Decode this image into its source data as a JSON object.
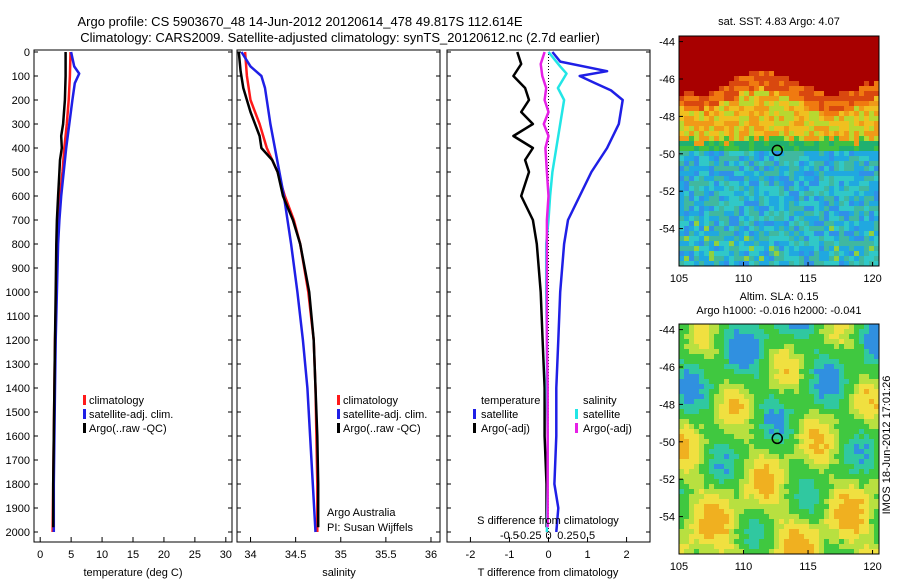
{
  "title": {
    "line1": "Argo profile: CS 5903670_48 14-Jun-2012 20120614_478 49.817S 112.614E",
    "line2": "Climatology: CARS2009. Satellite-adjusted climatology: synTS_20120612.nc (2.7d earlier)"
  },
  "colors": {
    "climatology": "#ff1a1a",
    "satellite": "#1f1fe6",
    "argo": "#000000",
    "sat_salinity": "#22e6e6",
    "argo_salinity": "#e61fe6"
  },
  "depth_ticks": [
    "0",
    "100",
    "200",
    "300",
    "400",
    "500",
    "600",
    "700",
    "800",
    "900",
    "1000",
    "1100",
    "1200",
    "1300",
    "1400",
    "1500",
    "1600",
    "1700",
    "1800",
    "1900",
    "2000"
  ],
  "panel_temp": {
    "xlabel": "temperature (deg C)",
    "xticks": [
      "0",
      "5",
      "10",
      "15",
      "20",
      "25",
      "30"
    ],
    "legend": [
      "climatology",
      "satellite-adj. clim.",
      "Argo(..raw -QC)"
    ]
  },
  "panel_sal": {
    "xlabel": "salinity",
    "xticks": [
      "34",
      "34.5",
      "35",
      "35.5",
      "36"
    ],
    "legend": [
      "climatology",
      "satellite-adj. clim.",
      "Argo(..raw -QC)"
    ],
    "note1": "Argo Australia",
    "note2": "PI: Susan Wijffels"
  },
  "panel_diff": {
    "xlabel": "T difference from climatology",
    "xticks": [
      "-2",
      "-1",
      "0",
      "1",
      "2"
    ],
    "top_label": "S difference from climatology",
    "top_ticks": [
      "-0.5",
      "-0.25",
      "0",
      "0.25",
      "0.5"
    ],
    "legend_t_head": "temperature",
    "legend_s_head": "salinity",
    "legend_t": [
      "satellite",
      "Argo(-adj)"
    ],
    "legend_s": [
      "satellite",
      "Argo(-adj)"
    ]
  },
  "map_sst": {
    "title": "sat. SST: 4.83 Argo: 4.07",
    "yticks": [
      "-44",
      "-46",
      "-48",
      "-50",
      "-52",
      "-54"
    ],
    "xticks": [
      "105",
      "110",
      "115",
      "120"
    ]
  },
  "map_sla": {
    "title1": "Altim. SLA: 0.15",
    "title2": "Argo h1000: -0.016 h2000: -0.041",
    "yticks": [
      "-44",
      "-46",
      "-48",
      "-50",
      "-52",
      "-54"
    ],
    "xticks": [
      "105",
      "110",
      "115",
      "120"
    ]
  },
  "side_label": "IMOS 18-Jun-2012 17:01:26",
  "chart_data": [
    {
      "type": "line",
      "title": "",
      "xlabel": "temperature (deg C)",
      "ylabel": "",
      "xlim": [
        -1,
        31
      ],
      "ylim": [
        2050,
        0
      ],
      "series": [
        {
          "name": "climatology",
          "depth": [
            0,
            100,
            200,
            300,
            400,
            500,
            600,
            700,
            800,
            1000,
            1200,
            1400,
            1600,
            1800,
            2000
          ],
          "values": [
            4.9,
            4.8,
            4.6,
            4.3,
            3.9,
            3.6,
            3.2,
            2.9,
            2.8,
            2.6,
            2.4,
            2.3,
            2.2,
            2.1,
            2.0
          ]
        },
        {
          "name": "satellite-adj. clim.",
          "depth": [
            0,
            60,
            90,
            130,
            200,
            300,
            400,
            500,
            600,
            700,
            800,
            1000,
            1200,
            1400,
            1600,
            1800,
            2000
          ],
          "values": [
            5.0,
            5.5,
            6.3,
            5.6,
            5.2,
            4.7,
            4.2,
            3.8,
            3.4,
            3.1,
            2.9,
            2.7,
            2.5,
            2.4,
            2.3,
            2.2,
            2.2
          ]
        },
        {
          "name": "Argo(..raw -QC)",
          "depth": [
            0,
            100,
            200,
            300,
            350,
            400,
            450,
            500,
            600,
            700,
            800,
            1000,
            1200,
            1400,
            1600,
            1800,
            1980
          ],
          "values": [
            4.1,
            4.1,
            4.0,
            3.7,
            3.4,
            3.5,
            3.2,
            3.1,
            2.9,
            2.7,
            2.6,
            2.5,
            2.4,
            2.3,
            2.2,
            2.1,
            2.1
          ]
        }
      ]
    },
    {
      "type": "line",
      "title": "",
      "xlabel": "salinity",
      "ylabel": "",
      "xlim": [
        33.85,
        36.1
      ],
      "ylim": [
        2050,
        0
      ],
      "series": [
        {
          "name": "climatology",
          "depth": [
            0,
            100,
            200,
            300,
            400,
            500,
            600,
            700,
            800,
            1000,
            1200,
            1400,
            1600,
            1800,
            2000
          ],
          "values": [
            33.94,
            33.96,
            34.0,
            34.1,
            34.18,
            34.3,
            34.38,
            34.48,
            34.55,
            34.64,
            34.7,
            34.72,
            34.73,
            34.74,
            34.74
          ]
        },
        {
          "name": "satellite-adj. clim.",
          "depth": [
            0,
            60,
            100,
            150,
            200,
            300,
            400,
            500,
            600,
            700,
            800,
            1000,
            1200,
            1400,
            1600,
            1800,
            2000
          ],
          "values": [
            33.9,
            34.0,
            34.12,
            34.16,
            34.18,
            34.22,
            34.27,
            34.32,
            34.37,
            34.41,
            34.45,
            34.52,
            34.58,
            34.63,
            34.66,
            34.69,
            34.72
          ]
        },
        {
          "name": "Argo(..raw -QC)",
          "depth": [
            0,
            80,
            150,
            250,
            350,
            400,
            450,
            500,
            600,
            700,
            800,
            1000,
            1200,
            1400,
            1600,
            1800,
            1980
          ],
          "values": [
            33.87,
            33.89,
            33.92,
            34.0,
            34.1,
            34.12,
            34.24,
            34.3,
            34.36,
            34.47,
            34.55,
            34.65,
            34.7,
            34.72,
            34.74,
            34.75,
            34.75
          ]
        }
      ]
    },
    {
      "type": "line",
      "title": "",
      "xlabel": "T difference from climatology",
      "ylabel": "",
      "xlim": [
        -2.6,
        2.6
      ],
      "ylim": [
        2050,
        0
      ],
      "series": [
        {
          "name": "temperature satellite",
          "depth": [
            0,
            40,
            80,
            100,
            130,
            160,
            200,
            300,
            400,
            500,
            600,
            700,
            800,
            1000,
            1200,
            1400,
            1600,
            1800,
            1900,
            2000
          ],
          "values": [
            0.1,
            0.3,
            1.5,
            0.8,
            1.2,
            1.6,
            1.9,
            1.8,
            1.5,
            1.1,
            0.8,
            0.5,
            0.4,
            0.3,
            0.25,
            0.2,
            0.2,
            0.15,
            0.25,
            0.2
          ]
        },
        {
          "name": "temperature Argo(-adj)",
          "depth": [
            0,
            50,
            100,
            150,
            200,
            250,
            300,
            350,
            400,
            450,
            500,
            550,
            600,
            700,
            800,
            1000,
            1200,
            1400,
            1600,
            1800,
            1980
          ],
          "values": [
            -0.8,
            -0.7,
            -0.9,
            -0.6,
            -0.5,
            -0.7,
            -0.4,
            -0.9,
            -0.4,
            -0.6,
            -0.5,
            -0.6,
            -0.7,
            -0.4,
            -0.3,
            -0.2,
            -0.15,
            -0.1,
            -0.1,
            -0.05,
            -0.05
          ]
        },
        {
          "name": "salinity satellite",
          "scale": "S",
          "depth": [
            0,
            60,
            90,
            150,
            200,
            300,
            400,
            500,
            600,
            700,
            800,
            1000,
            1200,
            1400,
            1600,
            1800,
            2000
          ],
          "values": [
            0.0,
            0.15,
            0.23,
            0.12,
            0.2,
            0.15,
            0.1,
            0.05,
            0.02,
            0.0,
            -0.03,
            -0.03,
            -0.02,
            -0.02,
            -0.01,
            -0.01,
            -0.02
          ]
        },
        {
          "name": "salinity Argo(-adj)",
          "scale": "S",
          "depth": [
            0,
            50,
            100,
            150,
            200,
            250,
            300,
            350,
            400,
            500,
            600,
            700,
            800,
            1000,
            1200,
            1400,
            1600,
            1800,
            1980
          ],
          "values": [
            -0.05,
            -0.1,
            -0.08,
            -0.03,
            -0.05,
            0.0,
            -0.06,
            0.0,
            -0.04,
            -0.02,
            0.0,
            -0.02,
            -0.02,
            -0.02,
            -0.02,
            -0.01,
            -0.01,
            -0.01,
            -0.01
          ]
        }
      ]
    },
    {
      "type": "heatmap",
      "title": "sat. SST: 4.83 Argo: 4.07",
      "xlim": [
        105,
        120.5
      ],
      "ylim": [
        -56,
        -43.7
      ],
      "marker": {
        "lon": 112.614,
        "lat": -49.817
      }
    },
    {
      "type": "heatmap",
      "title": "Altim. SLA: 0.15",
      "xlim": [
        105,
        120.5
      ],
      "ylim": [
        -56,
        -43.7
      ],
      "marker": {
        "lon": 112.614,
        "lat": -49.817
      }
    }
  ]
}
